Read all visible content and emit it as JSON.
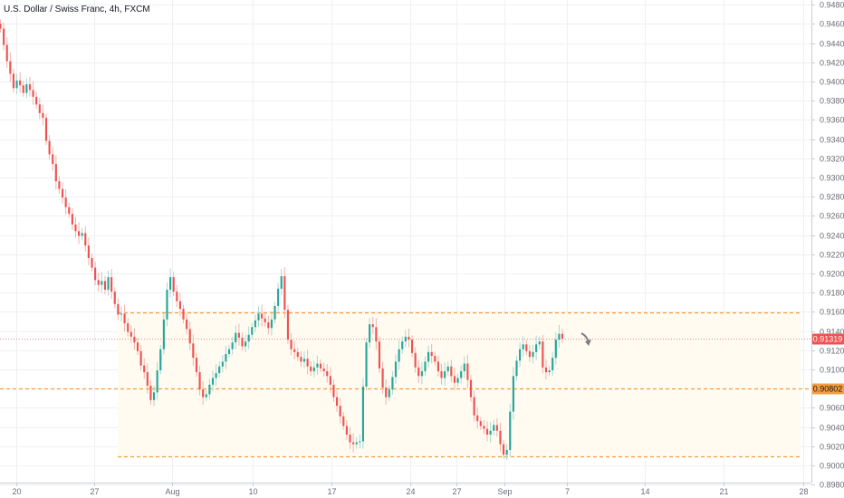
{
  "header": {
    "title": "U.S. Dollar / Swiss Franc, 4h, FXCM"
  },
  "colors": {
    "up": "#26a69a",
    "down": "#ef5350",
    "wick_up": "#a6d8d2",
    "wick_down": "#f3b0ae",
    "level": "#f59d3d",
    "price_badge": "#ef5350",
    "level_badge": "#f59d3d",
    "grid": "#eef0f3",
    "zone_fill": "#fffbf1",
    "axis_text": "#6a6d78"
  },
  "chart_data": {
    "type": "candlestick",
    "title": "U.S. Dollar / Swiss Franc, 4h, FXCM",
    "ylim": [
      0.8972,
      0.9482
    ],
    "y_ticks": [
      "0.94800",
      "0.94600",
      "0.94400",
      "0.94200",
      "0.94000",
      "0.93800",
      "0.93600",
      "0.93400",
      "0.93200",
      "0.93000",
      "0.92800",
      "0.92600",
      "0.92400",
      "0.92200",
      "0.92000",
      "0.91800",
      "0.91600",
      "0.91400",
      "0.91200",
      "0.91000",
      "0.90800",
      "0.90600",
      "0.90400",
      "0.90200",
      "0.90000",
      "0.89800"
    ],
    "x_ticks": [
      "20",
      "27",
      "Aug",
      "10",
      "17",
      "24",
      "27",
      "Sep",
      "7",
      "14",
      "21",
      "28"
    ],
    "grid": true,
    "last_price": {
      "value": 0.91319,
      "label": "0.91319"
    },
    "levels": [
      {
        "value": 0.9159,
        "label": ""
      },
      {
        "value": 0.90802,
        "label": "0.90802"
      },
      {
        "value": 0.9009,
        "label": ""
      }
    ],
    "projection_arrow": "down",
    "closes": [
      0.9455,
      0.9438,
      0.9421,
      0.9408,
      0.9393,
      0.9401,
      0.9396,
      0.9388,
      0.9397,
      0.9391,
      0.9384,
      0.9376,
      0.9367,
      0.9362,
      0.9338,
      0.9324,
      0.9314,
      0.9296,
      0.9288,
      0.9279,
      0.9269,
      0.9262,
      0.9251,
      0.9244,
      0.9239,
      0.9242,
      0.9229,
      0.9216,
      0.9206,
      0.9193,
      0.9188,
      0.9192,
      0.9183,
      0.9196,
      0.9181,
      0.9168,
      0.9157,
      0.9158,
      0.9148,
      0.9139,
      0.9134,
      0.9128,
      0.9119,
      0.9104,
      0.9097,
      0.9083,
      0.9068,
      0.9076,
      0.9099,
      0.9121,
      0.9152,
      0.9183,
      0.9196,
      0.9181,
      0.9171,
      0.9163,
      0.9152,
      0.9142,
      0.9127,
      0.9112,
      0.9097,
      0.9079,
      0.9071,
      0.9074,
      0.9084,
      0.9091,
      0.9096,
      0.9103,
      0.9108,
      0.9116,
      0.9121,
      0.9128,
      0.9138,
      0.9133,
      0.9124,
      0.9129,
      0.9136,
      0.9144,
      0.9151,
      0.9158,
      0.9153,
      0.9149,
      0.9143,
      0.9152,
      0.9166,
      0.9184,
      0.9197,
      0.9162,
      0.9131,
      0.9121,
      0.9118,
      0.9113,
      0.9108,
      0.9111,
      0.9103,
      0.9098,
      0.9102,
      0.9106,
      0.9101,
      0.9098,
      0.9093,
      0.9084,
      0.9071,
      0.9062,
      0.9051,
      0.9041,
      0.9032,
      0.9024,
      0.9022,
      0.9024,
      0.9025,
      0.9082,
      0.9128,
      0.9147,
      0.9144,
      0.9129,
      0.9101,
      0.9081,
      0.9071,
      0.9079,
      0.9092,
      0.9108,
      0.9121,
      0.9129,
      0.9134,
      0.9131,
      0.9117,
      0.9102,
      0.9093,
      0.9098,
      0.9108,
      0.9118,
      0.9114,
      0.9108,
      0.9098,
      0.9091,
      0.9098,
      0.9103,
      0.9093,
      0.9086,
      0.9091,
      0.9098,
      0.9106,
      0.9089,
      0.9071,
      0.9052,
      0.9046,
      0.9041,
      0.9038,
      0.9032,
      0.9036,
      0.9042,
      0.9036,
      0.9022,
      0.9011,
      0.9016,
      0.9056,
      0.9093,
      0.9109,
      0.9121,
      0.9126,
      0.9119,
      0.9113,
      0.9118,
      0.9126,
      0.9129,
      0.9102,
      0.9097,
      0.9099,
      0.9112,
      0.9131,
      0.9137,
      0.9132
    ]
  }
}
